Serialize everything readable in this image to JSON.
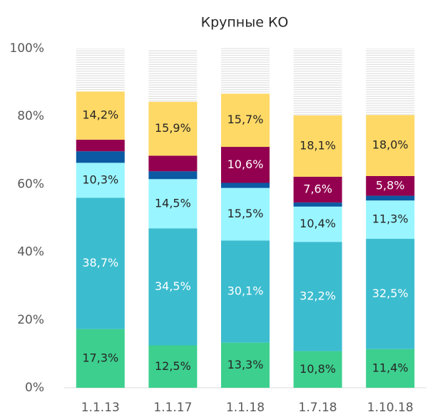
{
  "chart_data": {
    "type": "stacked_bar",
    "title": "Крупные КО",
    "categories": [
      "1.1.13",
      "1.1.17",
      "1.1.18",
      "1.7.18",
      "1.10.18"
    ],
    "ylim": [
      0,
      100
    ],
    "yticks": [
      {
        "value": 0,
        "label": "0%"
      },
      {
        "value": 20,
        "label": "20%"
      },
      {
        "value": 40,
        "label": "40%"
      },
      {
        "value": 60,
        "label": "60%"
      },
      {
        "value": 80,
        "label": "80%"
      },
      {
        "value": 100,
        "label": "100%"
      }
    ],
    "grid": false,
    "series": [
      {
        "color": "#3dcf8e",
        "label_color": "#262626",
        "values": [
          17.3,
          12.5,
          13.3,
          10.8,
          11.4
        ],
        "value_labels": [
          "17,3%",
          "12,5%",
          "13,3%",
          "10,8%",
          "11,4%"
        ]
      },
      {
        "color": "#3cbccf",
        "label_color": "#ffffff",
        "values": [
          38.7,
          34.5,
          30.1,
          32.2,
          32.5
        ],
        "value_labels": [
          "38,7%",
          "34,5%",
          "30,1%",
          "32,2%",
          "32,5%"
        ]
      },
      {
        "color": "#99f5ff",
        "label_color": "#262626",
        "values": [
          10.3,
          14.5,
          15.5,
          10.4,
          11.3
        ],
        "value_labels": [
          "10,3%",
          "14,5%",
          "15,5%",
          "10,4%",
          "11,3%"
        ]
      },
      {
        "color": "#0b5aa3",
        "label_color": "#ffffff",
        "values": [
          3.4,
          2.3,
          1.5,
          1.2,
          1.4
        ],
        "value_labels": [
          null,
          null,
          null,
          null,
          null
        ]
      },
      {
        "color": "#93004f",
        "label_color": "#ffffff",
        "values": [
          3.4,
          4.6,
          10.6,
          7.6,
          5.8
        ],
        "value_labels": [
          null,
          null,
          "10,6%",
          "7,6%",
          "5,8%"
        ]
      },
      {
        "color": "#ffd966",
        "label_color": "#262626",
        "values": [
          14.2,
          15.9,
          15.7,
          18.1,
          18.0
        ],
        "value_labels": [
          "14,2%",
          "15,9%",
          "15,7%",
          "18,1%",
          "18,0%"
        ]
      },
      {
        "color": "hatch",
        "label_color": "#262626",
        "values": [
          12.7,
          15.2,
          13.4,
          19.7,
          19.6
        ],
        "value_labels": [
          null,
          null,
          null,
          null,
          null
        ]
      }
    ]
  }
}
